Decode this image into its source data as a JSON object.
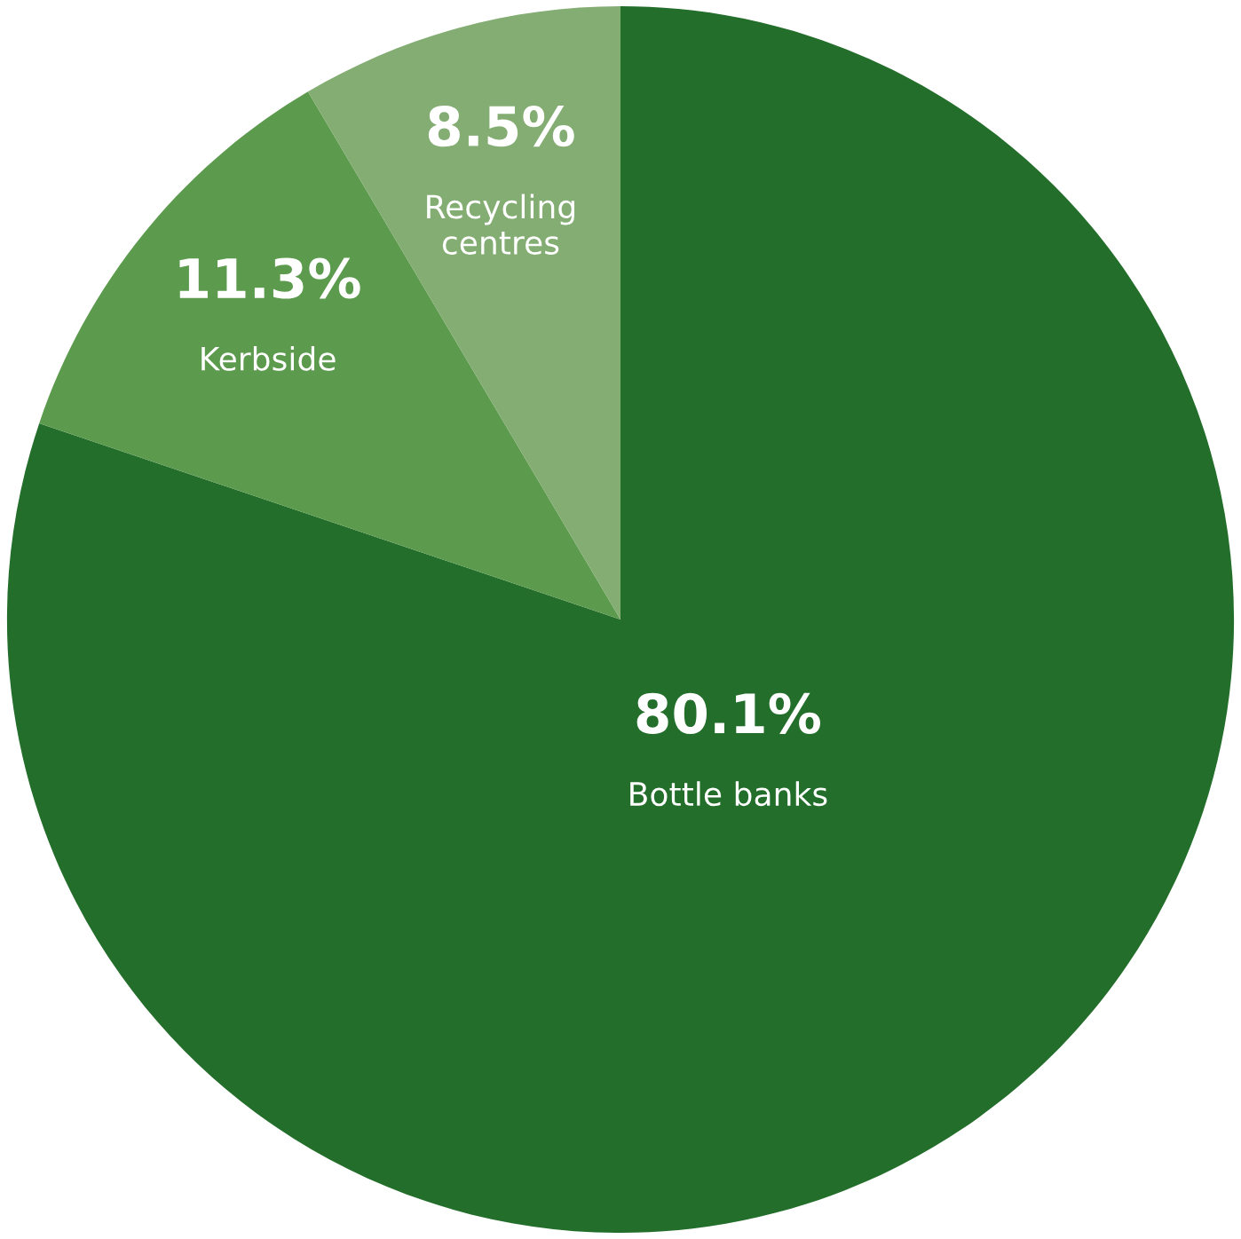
{
  "chart_data": {
    "type": "pie",
    "categories": [
      "Bottle banks",
      "Kerbside",
      "Recycling centres"
    ],
    "values": [
      80.1,
      11.3,
      8.5
    ],
    "colors": [
      "#236e2a",
      "#5c9a4d",
      "#84ad73"
    ],
    "value_labels": [
      "80.1%",
      "11.3%",
      "8.5%"
    ],
    "legend": false
  }
}
